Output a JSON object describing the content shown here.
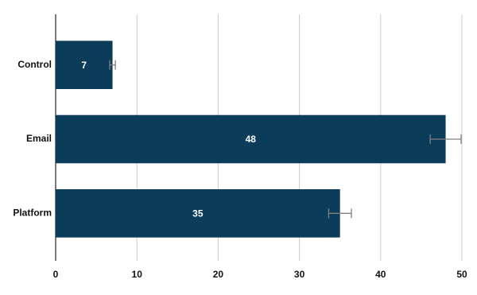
{
  "chart_data": {
    "type": "bar",
    "orientation": "horizontal",
    "categories": [
      "Control",
      "Email",
      "Platform"
    ],
    "values": [
      7,
      48,
      35
    ],
    "errors": [
      0.35,
      1.9,
      1.4
    ],
    "color": "#0b3d5a",
    "error_color": "#808080",
    "xlim": [
      0,
      50
    ],
    "xticks": [
      0,
      10,
      20,
      30,
      40,
      50
    ],
    "grid": true
  }
}
